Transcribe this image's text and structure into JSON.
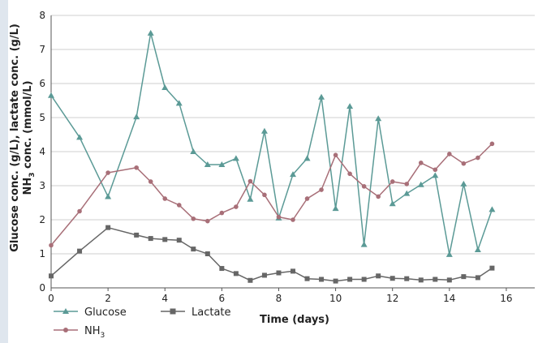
{
  "chart_data": {
    "type": "line",
    "xlabel": "Time (days)",
    "ylabel_line1": "Glucose conc. (g/L), lactate conc. (g/L)",
    "ylabel_line2": "NH",
    "ylabel_line2_sub": "3",
    "ylabel_line2_tail": " conc. (mmol/L)",
    "xlim": [
      0,
      17
    ],
    "ylim": [
      0,
      8
    ],
    "x_ticks": [
      "0",
      "2",
      "4",
      "6",
      "8",
      "10",
      "12",
      "14",
      "16"
    ],
    "y_ticks": [
      "0",
      "1",
      "2",
      "3",
      "4",
      "5",
      "6",
      "7",
      "8"
    ],
    "grid": "horizontal",
    "legend_position": "bottom-left",
    "series": [
      {
        "name": "Glucose",
        "marker": "triangle",
        "color": "#5b9a96",
        "points": [
          [
            0,
            5.65
          ],
          [
            1,
            4.42
          ],
          [
            2,
            2.68
          ],
          [
            3,
            5.02
          ],
          [
            3.5,
            7.48
          ],
          [
            4,
            5.88
          ],
          [
            4.5,
            5.42
          ],
          [
            5,
            4.0
          ],
          [
            5.5,
            3.62
          ],
          [
            6,
            3.62
          ],
          [
            6.5,
            3.8
          ],
          [
            7,
            2.6
          ],
          [
            7.5,
            4.6
          ],
          [
            8,
            2.05
          ],
          [
            8.5,
            3.33
          ],
          [
            9,
            3.8
          ],
          [
            9.5,
            5.6
          ],
          [
            10,
            2.33
          ],
          [
            10.5,
            5.33
          ],
          [
            11,
            1.27
          ],
          [
            11.5,
            4.97
          ],
          [
            12,
            2.47
          ],
          [
            12.5,
            2.77
          ],
          [
            13,
            3.03
          ],
          [
            13.5,
            3.3
          ],
          [
            14,
            0.98
          ],
          [
            14.5,
            3.05
          ],
          [
            15,
            1.12
          ],
          [
            15.5,
            2.3
          ]
        ]
      },
      {
        "name": "Lactate",
        "marker": "square",
        "color": "#666666",
        "points": [
          [
            0,
            0.35
          ],
          [
            1,
            1.08
          ],
          [
            2,
            1.77
          ],
          [
            3,
            1.55
          ],
          [
            3.5,
            1.45
          ],
          [
            4,
            1.42
          ],
          [
            4.5,
            1.4
          ],
          [
            5,
            1.14
          ],
          [
            5.5,
            1.0
          ],
          [
            6,
            0.57
          ],
          [
            6.5,
            0.42
          ],
          [
            7,
            0.22
          ],
          [
            7.5,
            0.37
          ],
          [
            8,
            0.44
          ],
          [
            8.5,
            0.49
          ],
          [
            9,
            0.27
          ],
          [
            9.5,
            0.25
          ],
          [
            10,
            0.2
          ],
          [
            10.5,
            0.25
          ],
          [
            11,
            0.25
          ],
          [
            11.5,
            0.35
          ],
          [
            12,
            0.28
          ],
          [
            12.5,
            0.27
          ],
          [
            13,
            0.23
          ],
          [
            13.5,
            0.25
          ],
          [
            14,
            0.23
          ],
          [
            14.5,
            0.33
          ],
          [
            15,
            0.3
          ],
          [
            15.5,
            0.58
          ]
        ]
      },
      {
        "name": "NH",
        "name_sub": "3",
        "marker": "circle",
        "color": "#a86f78",
        "points": [
          [
            0,
            1.25
          ],
          [
            1,
            2.25
          ],
          [
            2,
            3.38
          ],
          [
            3,
            3.53
          ],
          [
            3.5,
            3.12
          ],
          [
            4,
            2.62
          ],
          [
            4.5,
            2.43
          ],
          [
            5,
            2.03
          ],
          [
            5.5,
            1.96
          ],
          [
            6,
            2.2
          ],
          [
            6.5,
            2.38
          ],
          [
            7,
            3.13
          ],
          [
            7.5,
            2.73
          ],
          [
            8,
            2.08
          ],
          [
            8.5,
            2.0
          ],
          [
            9,
            2.62
          ],
          [
            9.5,
            2.88
          ],
          [
            10,
            3.9
          ],
          [
            10.5,
            3.35
          ],
          [
            11,
            2.98
          ],
          [
            11.5,
            2.68
          ],
          [
            12,
            3.12
          ],
          [
            12.5,
            3.05
          ],
          [
            13,
            3.67
          ],
          [
            13.5,
            3.47
          ],
          [
            14,
            3.93
          ],
          [
            14.5,
            3.65
          ],
          [
            15,
            3.82
          ],
          [
            15.5,
            4.23
          ]
        ]
      }
    ]
  }
}
